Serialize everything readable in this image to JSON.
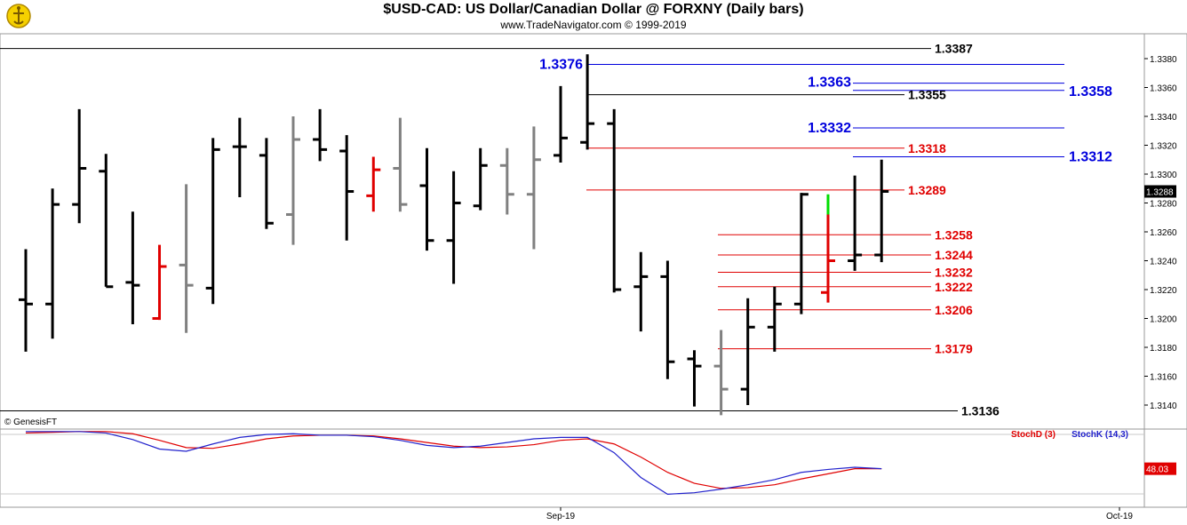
{
  "header": {
    "title": "$USD-CAD:  US Dollar/Canadian Dollar @ FORXNY  (Daily bars)",
    "copyright": "www.TradeNavigator.com © 1999-2019",
    "logo_icon": "trade-navigator-logo-icon"
  },
  "footer": {
    "credit": "© GenesisFT"
  },
  "colors": {
    "black_level": "#000000",
    "blue_level": "#0000dd",
    "red_level": "#e00000",
    "bar_black": "#000000",
    "bar_gray": "#808080",
    "bar_red": "#e00000",
    "bar_green": "#00dd00",
    "stoch_d": "#e00000",
    "stoch_k": "#2222cc"
  },
  "chart_data": [
    {
      "type": "ohlc",
      "title": "$USD-CAD:  US Dollar/Canadian Dollar @ FORXNY  (Daily bars)",
      "ylim": [
        1.3128,
        1.3392
      ],
      "y_ticks": [
        "1.3140",
        "1.3160",
        "1.3180",
        "1.3200",
        "1.3220",
        "1.3240",
        "1.3260",
        "1.3280",
        "1.3300",
        "1.3320",
        "1.3340",
        "1.3360",
        "1.3380"
      ],
      "x_ticks": [
        "Sep-19",
        "Oct-19"
      ],
      "last_price_label": "1.3288",
      "bars": [
        {
          "o": 1.3213,
          "h": 1.3248,
          "l": 1.3177,
          "c": 1.321,
          "color": "black"
        },
        {
          "o": 1.321,
          "h": 1.329,
          "l": 1.3186,
          "c": 1.3279,
          "color": "black"
        },
        {
          "o": 1.3279,
          "h": 1.3345,
          "l": 1.3266,
          "c": 1.3304,
          "color": "black"
        },
        {
          "o": 1.3302,
          "h": 1.3314,
          "l": 1.3222,
          "c": 1.3222,
          "color": "black"
        },
        {
          "o": 1.3225,
          "h": 1.3274,
          "l": 1.3196,
          "c": 1.3223,
          "color": "black"
        },
        {
          "o": 1.32,
          "h": 1.3251,
          "l": 1.3199,
          "c": 1.3236,
          "color": "red"
        },
        {
          "o": 1.3237,
          "h": 1.3293,
          "l": 1.319,
          "c": 1.3223,
          "color": "gray"
        },
        {
          "o": 1.3221,
          "h": 1.3325,
          "l": 1.321,
          "c": 1.3317,
          "color": "black"
        },
        {
          "o": 1.3319,
          "h": 1.3339,
          "l": 1.3284,
          "c": 1.3319,
          "color": "black"
        },
        {
          "o": 1.3313,
          "h": 1.3325,
          "l": 1.3262,
          "c": 1.3266,
          "color": "black"
        },
        {
          "o": 1.3272,
          "h": 1.334,
          "l": 1.3251,
          "c": 1.3324,
          "color": "gray"
        },
        {
          "o": 1.3324,
          "h": 1.3345,
          "l": 1.3309,
          "c": 1.3317,
          "color": "black"
        },
        {
          "o": 1.3316,
          "h": 1.3327,
          "l": 1.3254,
          "c": 1.3288,
          "color": "black"
        },
        {
          "o": 1.3285,
          "h": 1.3312,
          "l": 1.3274,
          "c": 1.3303,
          "color": "red"
        },
        {
          "o": 1.3304,
          "h": 1.3339,
          "l": 1.3274,
          "c": 1.3279,
          "color": "gray"
        },
        {
          "o": 1.3292,
          "h": 1.3318,
          "l": 1.3247,
          "c": 1.3254,
          "color": "black"
        },
        {
          "o": 1.3254,
          "h": 1.3302,
          "l": 1.3224,
          "c": 1.328,
          "color": "black"
        },
        {
          "o": 1.3278,
          "h": 1.3318,
          "l": 1.3275,
          "c": 1.3306,
          "color": "black"
        },
        {
          "o": 1.3306,
          "h": 1.3318,
          "l": 1.3272,
          "c": 1.3286,
          "color": "gray"
        },
        {
          "o": 1.3286,
          "h": 1.3333,
          "l": 1.3248,
          "c": 1.331,
          "color": "gray"
        },
        {
          "o": 1.3313,
          "h": 1.3361,
          "l": 1.3308,
          "c": 1.3325,
          "color": "black"
        },
        {
          "o": 1.3322,
          "h": 1.3383,
          "l": 1.3317,
          "c": 1.3335,
          "color": "black"
        },
        {
          "o": 1.3335,
          "h": 1.3345,
          "l": 1.3218,
          "c": 1.322,
          "color": "black"
        },
        {
          "o": 1.3222,
          "h": 1.3246,
          "l": 1.3191,
          "c": 1.3229,
          "color": "black"
        },
        {
          "o": 1.3229,
          "h": 1.324,
          "l": 1.3158,
          "c": 1.317,
          "color": "black"
        },
        {
          "o": 1.3172,
          "h": 1.3178,
          "l": 1.3139,
          "c": 1.3167,
          "color": "black"
        },
        {
          "o": 1.3167,
          "h": 1.3192,
          "l": 1.3133,
          "c": 1.3151,
          "color": "gray"
        },
        {
          "o": 1.3151,
          "h": 1.3214,
          "l": 1.314,
          "c": 1.3194,
          "color": "black"
        },
        {
          "o": 1.3194,
          "h": 1.3222,
          "l": 1.3177,
          "c": 1.321,
          "color": "black"
        },
        {
          "o": 1.321,
          "h": 1.3287,
          "l": 1.3203,
          "c": 1.3286,
          "color": "black"
        },
        {
          "o": 1.3218,
          "h": 1.3286,
          "l": 1.3211,
          "c": 1.324,
          "color": "red",
          "top_green": 1.3272
        },
        {
          "o": 1.324,
          "h": 1.3299,
          "l": 1.3233,
          "c": 1.3244,
          "color": "black"
        },
        {
          "o": 1.3244,
          "h": 1.331,
          "l": 1.3239,
          "c": 1.3288,
          "color": "black"
        }
      ],
      "levels": [
        {
          "label": "1.3387",
          "value": 1.3387,
          "color": "black"
        },
        {
          "label": "1.3376",
          "value": 1.3376,
          "color": "blue"
        },
        {
          "label": "1.3363",
          "value": 1.3363,
          "color": "blue"
        },
        {
          "label": "1.3358",
          "value": 1.3358,
          "color": "blue"
        },
        {
          "label": "1.3355",
          "value": 1.3355,
          "color": "black"
        },
        {
          "label": "1.3332",
          "value": 1.3332,
          "color": "blue"
        },
        {
          "label": "1.3318",
          "value": 1.3318,
          "color": "red"
        },
        {
          "label": "1.3312",
          "value": 1.3312,
          "color": "blue"
        },
        {
          "label": "1.3289",
          "value": 1.3289,
          "color": "red"
        },
        {
          "label": "1.3258",
          "value": 1.3258,
          "color": "red"
        },
        {
          "label": "1.3244",
          "value": 1.3244,
          "color": "red"
        },
        {
          "label": "1.3232",
          "value": 1.3232,
          "color": "red"
        },
        {
          "label": "1.3222",
          "value": 1.3222,
          "color": "red"
        },
        {
          "label": "1.3206",
          "value": 1.3206,
          "color": "red"
        },
        {
          "label": "1.3179",
          "value": 1.3179,
          "color": "red"
        },
        {
          "label": "1.3136",
          "value": 1.3136,
          "color": "black"
        }
      ]
    },
    {
      "type": "line",
      "ylim": [
        0,
        100
      ],
      "legend": [
        "StochD (3)",
        "StochK (14,3)"
      ],
      "last_value_label": "48.03",
      "series": [
        {
          "name": "StochD (3)",
          "values": [
            97,
            98,
            99,
            99,
            96,
            87,
            77,
            76,
            82,
            89,
            93,
            94,
            94,
            93,
            89,
            84,
            79,
            77,
            78,
            81,
            87,
            89,
            82,
            64,
            43,
            28,
            21,
            22,
            26,
            34,
            41,
            48,
            48
          ]
        },
        {
          "name": "StochK (14,3)",
          "values": [
            99,
            99,
            99,
            97,
            88,
            75,
            72,
            82,
            91,
            95,
            96,
            94,
            94,
            92,
            87,
            80,
            77,
            79,
            84,
            89,
            91,
            91,
            70,
            36,
            13,
            15,
            20,
            26,
            33,
            43,
            47,
            50,
            48
          ]
        }
      ]
    }
  ]
}
